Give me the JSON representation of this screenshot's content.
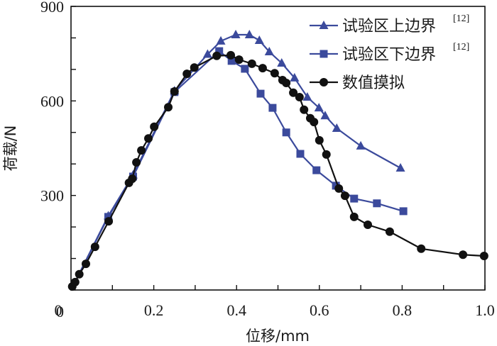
{
  "chart_data": {
    "type": "line",
    "title": "",
    "xlabel": "位移/mm",
    "ylabel": "荷载/N",
    "xlim": [
      0,
      1.0
    ],
    "ylim": [
      0,
      900
    ],
    "x_ticks": [
      0,
      0.2,
      0.4,
      0.6,
      0.8,
      1.0
    ],
    "x_tick_labels": [
      "0",
      "0.2",
      "0.4",
      "0.6",
      "0.8",
      "1.0"
    ],
    "x_minor_step": 0.1,
    "y_ticks": [
      0,
      300,
      600,
      900
    ],
    "y_tick_labels": [
      "0",
      "300",
      "600",
      "900"
    ],
    "y_minor_step": 100,
    "grid": false,
    "legend_position": "top-right",
    "series": [
      {
        "name": "试验区上边界",
        "ref": "[12]",
        "marker": "triangle",
        "color": "#3b4a9c",
        "points": [
          [
            0,
            0
          ],
          [
            0.09,
            235
          ],
          [
            0.15,
            365
          ],
          [
            0.25,
            632
          ],
          [
            0.33,
            748
          ],
          [
            0.362,
            790
          ],
          [
            0.398,
            810
          ],
          [
            0.431,
            810
          ],
          [
            0.455,
            792
          ],
          [
            0.479,
            756
          ],
          [
            0.509,
            720
          ],
          [
            0.54,
            673
          ],
          [
            0.571,
            612
          ],
          [
            0.599,
            578
          ],
          [
            0.614,
            553
          ],
          [
            0.642,
            513
          ],
          [
            0.7,
            457
          ],
          [
            0.796,
            387
          ]
        ]
      },
      {
        "name": "试验区下边界",
        "ref": "[12]",
        "marker": "square",
        "color": "#3b4a9c",
        "points": [
          [
            0,
            0
          ],
          [
            0.09,
            232
          ],
          [
            0.15,
            360
          ],
          [
            0.25,
            628
          ],
          [
            0.358,
            758
          ],
          [
            0.388,
            727
          ],
          [
            0.42,
            702
          ],
          [
            0.458,
            623
          ],
          [
            0.487,
            578
          ],
          [
            0.52,
            500
          ],
          [
            0.554,
            432
          ],
          [
            0.593,
            380
          ],
          [
            0.64,
            331
          ],
          [
            0.684,
            290
          ],
          [
            0.739,
            275
          ],
          [
            0.803,
            250
          ]
        ]
      },
      {
        "name": "数值摸拟",
        "ref": "",
        "marker": "circle",
        "color": "#111111",
        "points": [
          [
            0.003,
            11
          ],
          [
            0.01,
            25
          ],
          [
            0.02,
            50
          ],
          [
            0.036,
            83
          ],
          [
            0.058,
            137
          ],
          [
            0.091,
            218
          ],
          [
            0.14,
            340
          ],
          [
            0.148,
            353
          ],
          [
            0.158,
            405
          ],
          [
            0.17,
            443
          ],
          [
            0.187,
            481
          ],
          [
            0.201,
            518
          ],
          [
            0.235,
            580
          ],
          [
            0.25,
            630
          ],
          [
            0.28,
            686
          ],
          [
            0.298,
            706
          ],
          [
            0.352,
            743
          ],
          [
            0.386,
            745
          ],
          [
            0.406,
            731
          ],
          [
            0.437,
            718
          ],
          [
            0.463,
            704
          ],
          [
            0.492,
            688
          ],
          [
            0.511,
            666
          ],
          [
            0.52,
            657
          ],
          [
            0.537,
            626
          ],
          [
            0.552,
            612
          ],
          [
            0.563,
            572
          ],
          [
            0.578,
            545
          ],
          [
            0.587,
            533
          ],
          [
            0.6,
            475
          ],
          [
            0.617,
            430
          ],
          [
            0.647,
            322
          ],
          [
            0.662,
            299
          ],
          [
            0.684,
            232
          ],
          [
            0.717,
            207
          ],
          [
            0.77,
            185
          ],
          [
            0.846,
            131
          ],
          [
            0.947,
            112
          ],
          [
            0.998,
            108
          ]
        ]
      }
    ]
  }
}
